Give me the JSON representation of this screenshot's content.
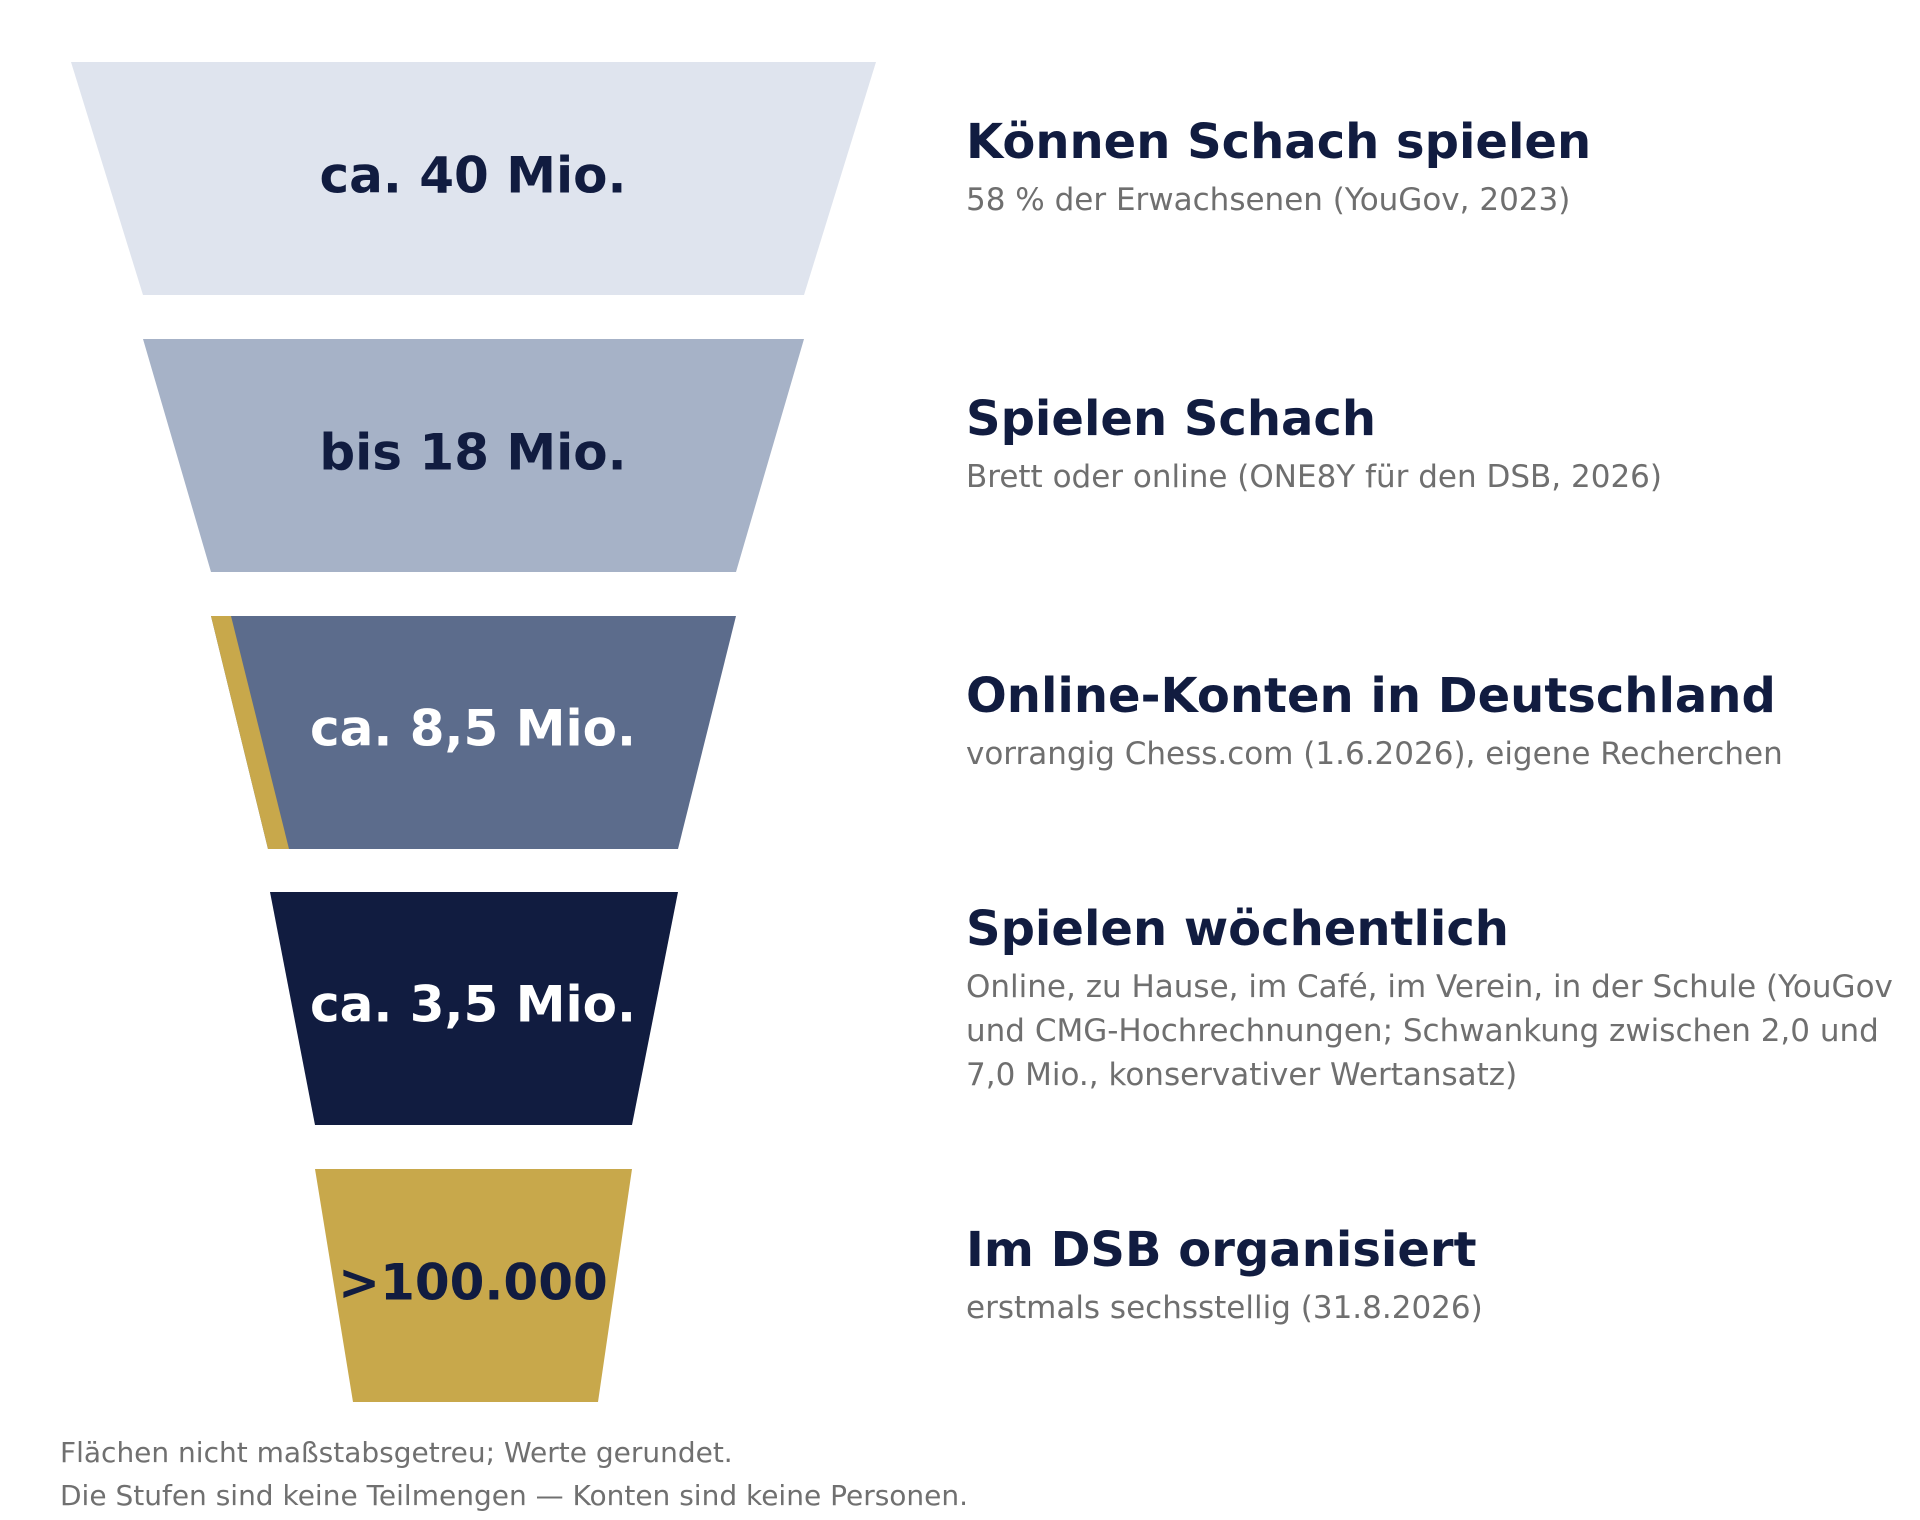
{
  "colors": {
    "stage1": "#dfe4ee",
    "stage2": "#a6b2c7",
    "stage3": "#5c6c8c",
    "stage4": "#111c40",
    "stage5": "#c8a84b",
    "accent": "#c8a84b",
    "text_dark": "#111c40",
    "text_light": "#ffffff",
    "text_muted": "#6f6f6f"
  },
  "stages": [
    {
      "value": "ca. 40 Mio.",
      "title": "Können Schach spielen",
      "subtitle": "58 % der Erwachsenen (YouGov, 2023)"
    },
    {
      "value": "bis 18 Mio.",
      "title": "Spielen Schach",
      "subtitle": "Brett oder online (ONE8Y für den DSB, 2026)"
    },
    {
      "value": "ca. 8,5 Mio.",
      "title": "Online-Konten in Deutschland",
      "subtitle": "vorrangig Chess.com (1.6.2026), eigene Recherchen"
    },
    {
      "value": "ca. 3,5 Mio.",
      "title": "Spielen wöchentlich",
      "subtitle": "Online, zu Hause, im Café, im Verein, in der Schule (YouGov und CMG-Hochrechnungen; Schwankung zwischen 2,0 und 7,0 Mio., konservativer Wertansatz)"
    },
    {
      "value": ">100.000",
      "title": "Im DSB organisiert",
      "subtitle": "erstmals sechsstellig (31.8.2026)"
    }
  ],
  "footnotes": [
    "Flächen nicht maßstabsgetreu; Werte gerundet.",
    "Die Stufen sind keine Teilmengen — Konten sind keine Personen."
  ]
}
